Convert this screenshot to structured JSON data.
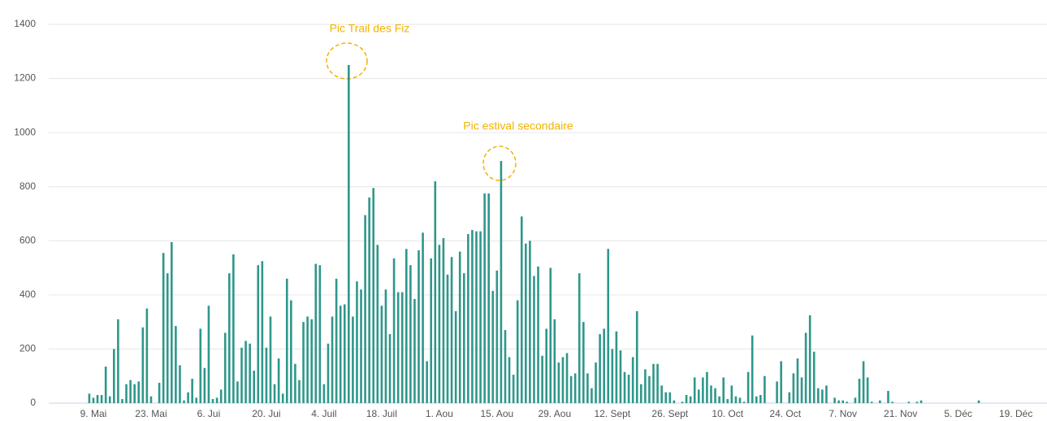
{
  "chart_data": {
    "type": "bar",
    "categories": [
      null,
      null,
      null,
      null,
      "9. Mai",
      null,
      null,
      null,
      null,
      null,
      null,
      null,
      null,
      null,
      null,
      null,
      null,
      null,
      "23. Mai",
      null,
      null,
      null,
      null,
      null,
      null,
      null,
      null,
      null,
      null,
      null,
      null,
      null,
      "6. Jui",
      null,
      null,
      null,
      null,
      null,
      null,
      null,
      null,
      null,
      null,
      null,
      null,
      null,
      "20. Jui",
      null,
      null,
      null,
      null,
      null,
      null,
      null,
      null,
      null,
      null,
      null,
      null,
      null,
      "4. Juil",
      null,
      null,
      null,
      null,
      null,
      null,
      null,
      null,
      null,
      null,
      null,
      null,
      null,
      "18. Juil",
      null,
      null,
      null,
      null,
      null,
      null,
      null,
      null,
      null,
      null,
      null,
      null,
      null,
      "1. Aou",
      null,
      null,
      null,
      null,
      null,
      null,
      null,
      null,
      null,
      null,
      null,
      null,
      null,
      "15. Aou",
      null,
      null,
      null,
      null,
      null,
      null,
      null,
      null,
      null,
      null,
      null,
      null,
      null,
      "29. Aou",
      null,
      null,
      null,
      null,
      null,
      null,
      null,
      null,
      null,
      null,
      null,
      null,
      null,
      "12. Sept",
      null,
      null,
      null,
      null,
      null,
      null,
      null,
      null,
      null,
      null,
      null,
      null,
      null,
      "26. Sept",
      null,
      null,
      null,
      null,
      null,
      null,
      null,
      null,
      null,
      null,
      null,
      null,
      null,
      "10. Oct",
      null,
      null,
      null,
      null,
      null,
      null,
      null,
      null,
      null,
      null,
      null,
      null,
      null,
      "24. Oct",
      null,
      null,
      null,
      null,
      null,
      null,
      null,
      null,
      null,
      null,
      null,
      null,
      null,
      "7. Nov",
      null,
      null,
      null,
      null,
      null,
      null,
      null,
      null,
      null,
      null,
      null,
      null,
      null,
      "21. Nov",
      null,
      null,
      null,
      null,
      null,
      null,
      null,
      null,
      null,
      null,
      null,
      null,
      null,
      "5. Déc",
      null,
      null,
      null,
      null,
      null,
      null,
      null,
      null,
      null,
      null,
      null,
      null,
      null,
      "19. Déc",
      null,
      null,
      null,
      null,
      null,
      null
    ],
    "values": [
      0,
      0,
      0,
      35,
      20,
      30,
      30,
      135,
      25,
      200,
      310,
      15,
      70,
      85,
      70,
      80,
      280,
      350,
      25,
      0,
      75,
      555,
      480,
      595,
      285,
      140,
      10,
      40,
      90,
      20,
      275,
      130,
      360,
      15,
      20,
      50,
      260,
      480,
      550,
      80,
      205,
      230,
      220,
      120,
      510,
      525,
      205,
      320,
      70,
      165,
      35,
      460,
      380,
      145,
      85,
      300,
      320,
      310,
      515,
      510,
      70,
      220,
      320,
      460,
      360,
      365,
      1250,
      320,
      450,
      420,
      695,
      760,
      795,
      585,
      360,
      420,
      255,
      535,
      410,
      410,
      570,
      510,
      385,
      565,
      630,
      155,
      535,
      820,
      585,
      610,
      475,
      540,
      340,
      560,
      480,
      625,
      640,
      635,
      635,
      775,
      775,
      415,
      490,
      895,
      270,
      170,
      105,
      380,
      690,
      590,
      600,
      470,
      505,
      175,
      275,
      500,
      310,
      150,
      170,
      185,
      100,
      110,
      480,
      300,
      110,
      55,
      150,
      255,
      275,
      570,
      200,
      265,
      195,
      115,
      105,
      170,
      340,
      70,
      125,
      100,
      145,
      145,
      65,
      40,
      40,
      10,
      0,
      5,
      30,
      25,
      95,
      50,
      95,
      115,
      65,
      55,
      25,
      95,
      15,
      65,
      25,
      20,
      5,
      115,
      250,
      25,
      30,
      100,
      0,
      0,
      80,
      155,
      0,
      40,
      110,
      165,
      95,
      260,
      325,
      190,
      55,
      50,
      65,
      0,
      20,
      10,
      10,
      5,
      0,
      20,
      90,
      155,
      95,
      5,
      0,
      10,
      0,
      45,
      5,
      0,
      0,
      0,
      5,
      0,
      5,
      10,
      0,
      0,
      0,
      0,
      0,
      0,
      0,
      0,
      0,
      0,
      0,
      0,
      0,
      10,
      0,
      0,
      0,
      0,
      0,
      0,
      0,
      0,
      0,
      0,
      0,
      0,
      0,
      0,
      0
    ],
    "color": "#2e978a",
    "ylim": [
      0,
      1400
    ],
    "yticks": [
      0,
      200,
      400,
      600,
      800,
      1000,
      1200,
      1400
    ],
    "grid": true,
    "annotations": [
      "Pic Trail des Fiz",
      "Pic estival secondaire"
    ]
  }
}
